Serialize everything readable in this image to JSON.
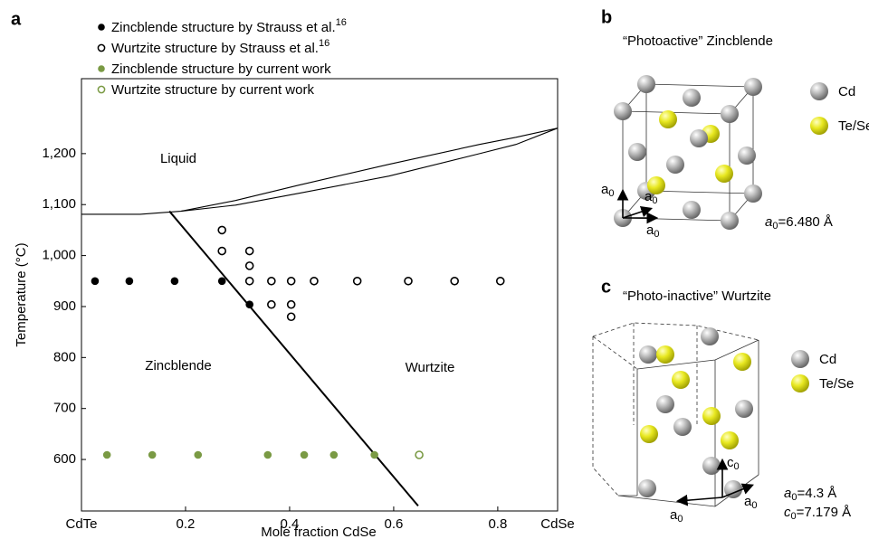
{
  "chart_data": {
    "type": "scatter",
    "panel_label": "a",
    "x_label": "Mole fraction CdSe",
    "y_label": "Temperature (°C)",
    "xlim": [
      0,
      0.915
    ],
    "ylim": [
      499,
      1347
    ],
    "xticks": [
      {
        "value": 0,
        "label": "CdTe"
      },
      0.2,
      0.4,
      0.6,
      0.8,
      {
        "value": 0.915,
        "label": "CdSe"
      }
    ],
    "yticks": [
      600,
      700,
      800,
      900,
      {
        "value": 1000,
        "label": "1,000"
      },
      {
        "value": 1100,
        "label": "1,100"
      },
      {
        "value": 1200,
        "label": "1,200"
      }
    ],
    "series": [
      {
        "name": "Zincblende structure by Strauss et al.",
        "ref": "16",
        "color": "#000000",
        "marker": "filled",
        "x": [
          0.026,
          0.092,
          0.179,
          0.27,
          0.323
        ],
        "values": [
          950,
          950,
          950,
          950,
          904
        ]
      },
      {
        "name": "Wurtzite structure by Strauss et al.",
        "ref": "16",
        "color": "#000000",
        "marker": "open",
        "x": [
          0.27,
          0.27,
          0.323,
          0.323,
          0.323,
          0.365,
          0.403,
          0.447,
          0.53,
          0.628,
          0.717,
          0.805,
          0.365,
          0.403,
          0.403
        ],
        "values": [
          1050,
          1009,
          1009,
          980,
          950,
          950,
          950,
          950,
          950,
          950,
          950,
          950,
          904,
          904,
          880
        ]
      },
      {
        "name": "Zincblende structure by current work",
        "color": "#7a9a44",
        "marker": "filled",
        "x": [
          0.049,
          0.136,
          0.224,
          0.358,
          0.428,
          0.485,
          0.563
        ],
        "values": [
          609,
          609,
          609,
          609,
          609,
          609,
          609
        ]
      },
      {
        "name": "Wurtzite structure by current work",
        "color": "#7a9a44",
        "marker": "open",
        "x": [
          0.649
        ],
        "values": [
          609
        ]
      }
    ],
    "boundaries": [
      {
        "x": [
          0,
          0.113,
          0.191,
          0.296,
          0.417,
          0.591,
          0.765,
          0.835,
          0.915
        ],
        "values": [
          1081,
          1081,
          1087,
          1099,
          1122,
          1156,
          1200,
          1218,
          1250
        ]
      },
      {
        "x": [
          0.191,
          0.296,
          0.417,
          0.591,
          0.765,
          0.835,
          0.915
        ],
        "values": [
          1087,
          1108,
          1138,
          1179,
          1218,
          1232,
          1250
        ]
      },
      {
        "x": [
          0.169,
          0.647
        ],
        "values": [
          1087,
          509
        ]
      }
    ],
    "regions": [
      "Liquid",
      "Zincblende",
      "Wurtzite"
    ]
  },
  "panel_b": {
    "label": "b",
    "title": "“Photoactive” Zincblende",
    "legend": [
      "Cd",
      "Te/Se"
    ],
    "axis_label": {
      "symbol": "a",
      "sub": "0"
    },
    "lattice": [
      {
        "symbol": "a",
        "sub": "0",
        "value": "=6.480 Å"
      }
    ]
  },
  "panel_c": {
    "label": "c",
    "title": "“Photo-inactive” Wurtzite",
    "legend": [
      "Cd",
      "Te/Se"
    ],
    "axis_labels": [
      {
        "symbol": "c",
        "sub": "0"
      },
      {
        "symbol": "a",
        "sub": "0"
      }
    ],
    "lattice": [
      {
        "symbol": "a",
        "sub": "0",
        "value": "=4.3 Å"
      },
      {
        "symbol": "c",
        "sub": "0",
        "value": "=7.179 Å"
      }
    ]
  }
}
